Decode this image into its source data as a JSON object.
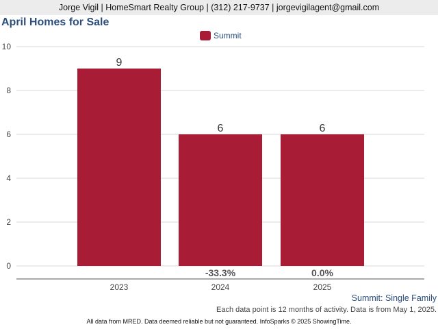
{
  "header": {
    "contact": "Jorge Vigil | HomeSmart Realty Group | (312) 217-9737 | jorgevigilagent@gmail.com"
  },
  "chart_data": {
    "type": "bar",
    "title": "April Homes for Sale",
    "categories": [
      "2023",
      "2024",
      "2025"
    ],
    "series": [
      {
        "name": "Summit",
        "values": [
          9,
          6,
          6
        ],
        "color": "#a81c36"
      }
    ],
    "change_labels": [
      "",
      "-33.3%",
      "0.0%"
    ],
    "ylim": [
      0,
      10
    ],
    "yticks": [
      0,
      2,
      4,
      6,
      8,
      10
    ],
    "grid": true,
    "legend_position": "top-center"
  },
  "notes": {
    "series_label": "Summit: Single Family",
    "data_note": "Each data point is 12 months of activity. Data is from May 1, 2025."
  },
  "footer": {
    "disclaimer": "All data from MRED. Data deemed reliable but not guaranteed. InfoSparks © 2025 ShowingTime."
  }
}
